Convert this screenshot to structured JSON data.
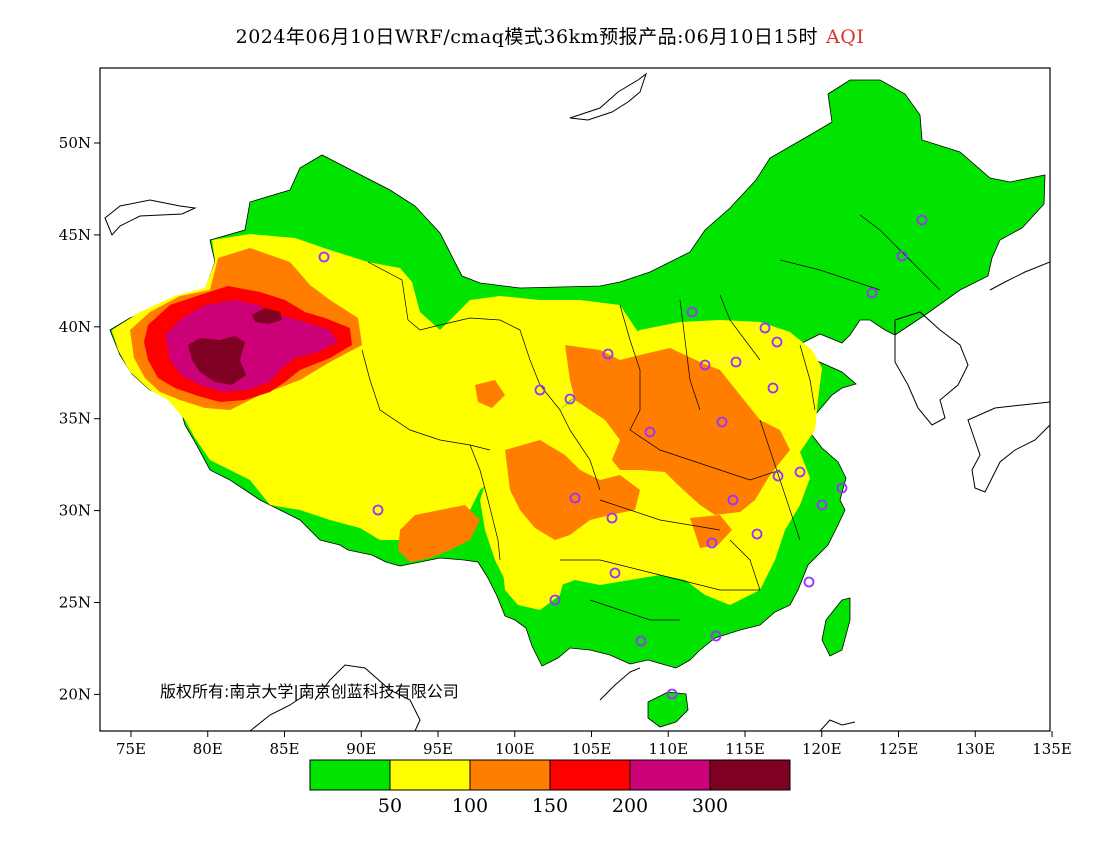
{
  "title": {
    "main": "2024年06月10日WRF/cmaq模式36km预报产品:06月10日15时",
    "product": "AQI"
  },
  "copyright": "版权所有:南京大学|南京创蓝科技有限公司",
  "axes": {
    "x_ticks": [
      "75E",
      "80E",
      "85E",
      "90E",
      "95E",
      "100E",
      "105E",
      "110E",
      "115E",
      "120E",
      "125E",
      "130E",
      "135E"
    ],
    "y_ticks": [
      "50N",
      "45N",
      "40N",
      "35N",
      "30N",
      "25N",
      "20N"
    ]
  },
  "legend": {
    "colors": [
      "#00e400",
      "#ffff00",
      "#ff7e00",
      "#ff0000",
      "#cc0077",
      "#7e0023"
    ],
    "labels": [
      "50",
      "100",
      "150",
      "200",
      "300"
    ]
  },
  "map": {
    "extent": {
      "lon_min": 73,
      "lon_max": 135,
      "lat_min": 18,
      "lat_max": 54
    },
    "station_color": "#9933ff"
  }
}
